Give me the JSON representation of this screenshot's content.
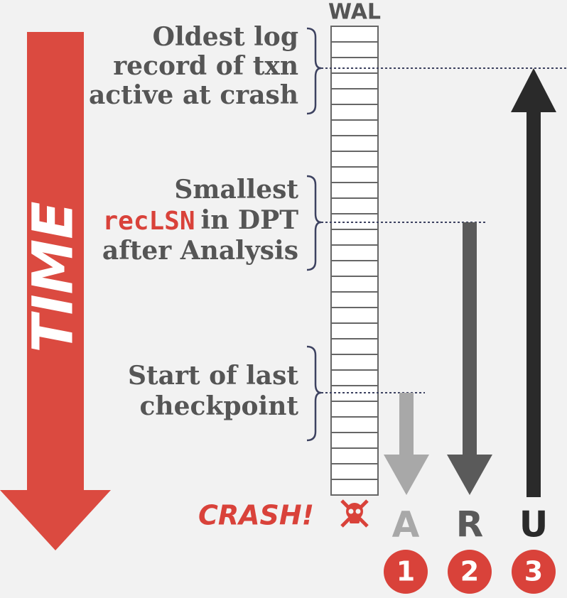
{
  "wal_label": "WAL",
  "time_label": "TIME",
  "crash_label": "CRASH!",
  "annotations": [
    {
      "lines": [
        "Oldest log",
        "record of txn",
        "active at crash"
      ]
    },
    {
      "lines": [
        "Smallest",
        "in DPT",
        "after Analysis"
      ],
      "code": "recLSN"
    },
    {
      "lines": [
        "Start of last",
        "checkpoint"
      ]
    }
  ],
  "phases": [
    {
      "letter": "A",
      "number": "1"
    },
    {
      "letter": "R",
      "number": "2"
    },
    {
      "letter": "U",
      "number": "3"
    }
  ]
}
